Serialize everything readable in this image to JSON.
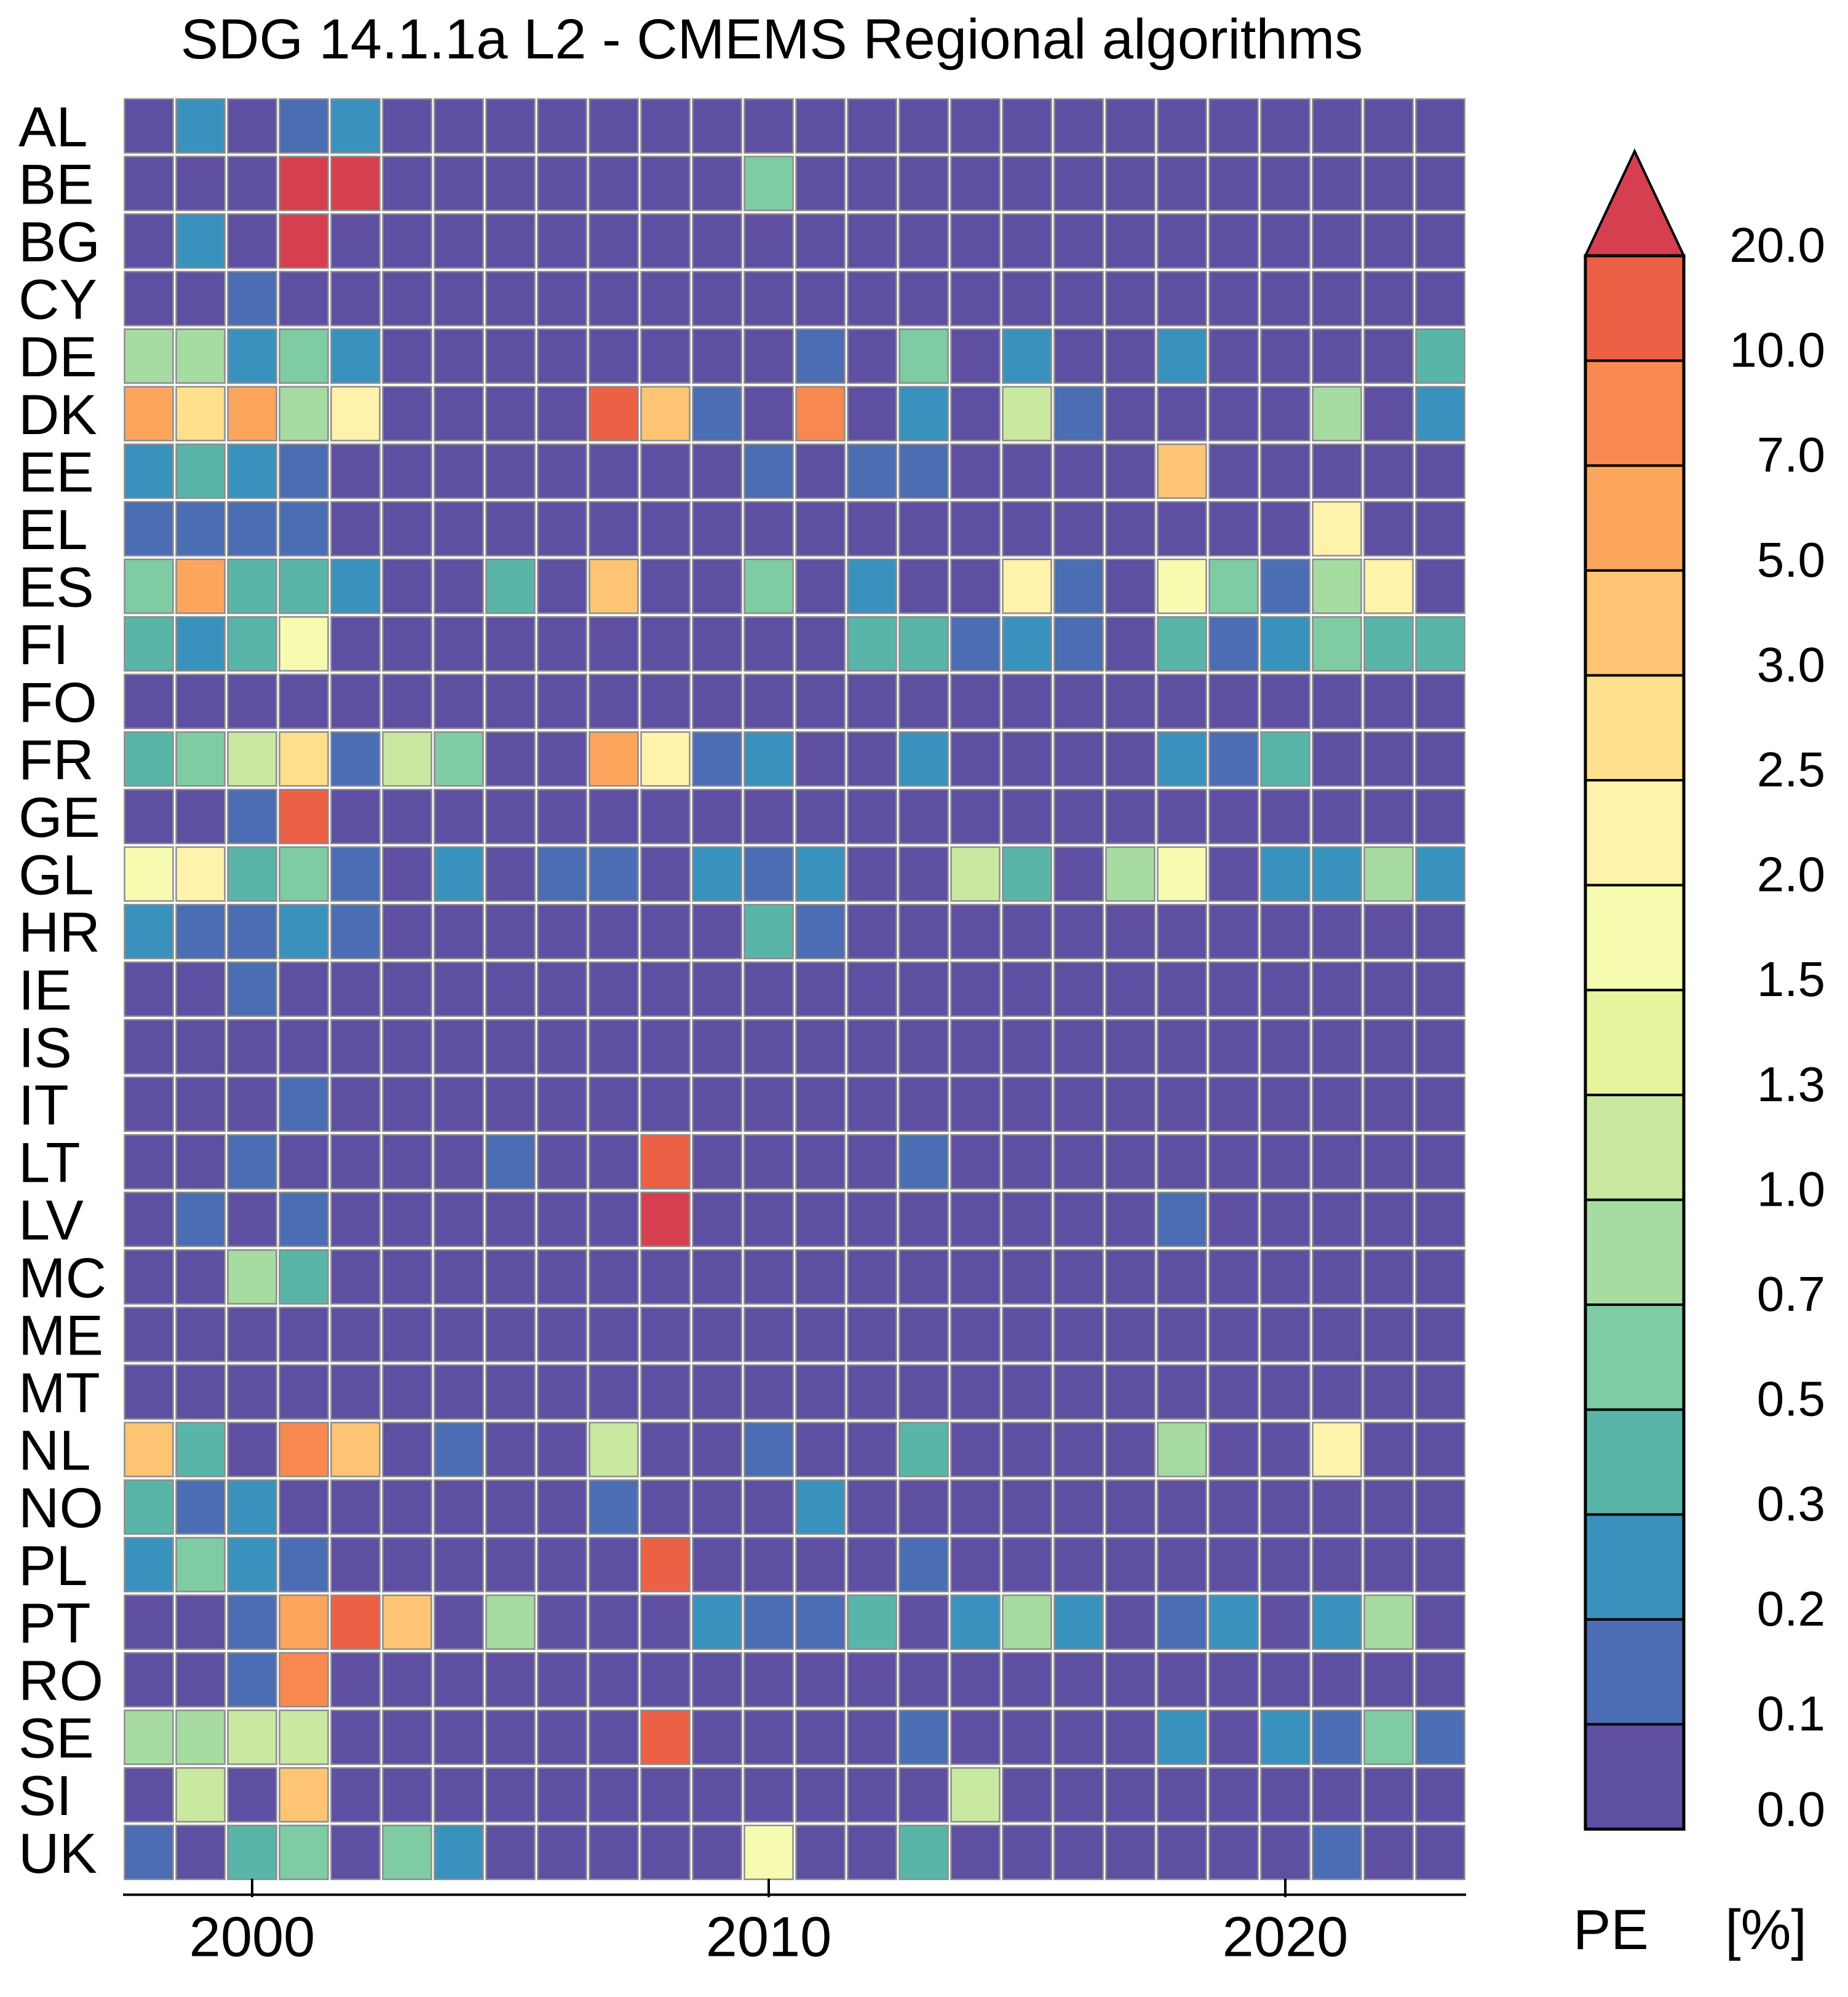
{
  "chart_data": {
    "type": "heatmap",
    "title": "SDG 14.1.1a L2 - CMEMS Regional algorithms",
    "xlabel": "",
    "ylabel": "",
    "x_ticks": [
      "2000",
      "2010",
      "2020"
    ],
    "x_tick_years": [
      2000,
      2010,
      2020
    ],
    "years": [
      1998,
      1999,
      2000,
      2001,
      2002,
      2003,
      2004,
      2005,
      2006,
      2007,
      2008,
      2009,
      2010,
      2011,
      2012,
      2013,
      2014,
      2015,
      2016,
      2017,
      2018,
      2019,
      2020,
      2021,
      2022,
      2023
    ],
    "countries": [
      "AL",
      "BE",
      "BG",
      "CY",
      "DE",
      "DK",
      "EE",
      "EL",
      "ES",
      "FI",
      "FO",
      "FR",
      "GE",
      "GL",
      "HR",
      "IE",
      "IS",
      "IT",
      "LT",
      "LV",
      "MC",
      "ME",
      "MT",
      "NL",
      "NO",
      "PL",
      "PT",
      "RO",
      "SE",
      "SI",
      "UK"
    ],
    "value_note": "Cell values are colour-class indices: 0 = 0.0-0.1, 1 = 0.1-0.2, 2 = 0.2-0.3, 3 = 0.3-0.5, 4 = 0.5-0.7, 5 = 0.7-1.0, 6 = 1.0-1.3, 7 = 1.3-1.5, 8 = 1.5-2.0, 9 = 2.0-2.5, 10 = 2.5-3.0, 11 = 3.0-5.0, 12 = 5.0-7.0, 13 = 7.0-10.0, 14 = 10.0-20.0, 15 = >20.0",
    "values": [
      [
        0,
        2,
        0,
        1,
        2,
        0,
        0,
        0,
        0,
        0,
        0,
        0,
        0,
        0,
        0,
        0,
        0,
        0,
        0,
        0,
        0,
        0,
        0,
        0,
        0,
        0
      ],
      [
        0,
        0,
        0,
        15,
        15,
        0,
        0,
        0,
        0,
        0,
        0,
        0,
        4,
        0,
        0,
        0,
        0,
        0,
        0,
        0,
        0,
        0,
        0,
        0,
        0,
        0
      ],
      [
        0,
        2,
        0,
        15,
        0,
        0,
        0,
        0,
        0,
        0,
        0,
        0,
        0,
        0,
        0,
        0,
        0,
        0,
        0,
        0,
        0,
        0,
        0,
        0,
        0,
        0
      ],
      [
        0,
        0,
        1,
        0,
        0,
        0,
        0,
        0,
        0,
        0,
        0,
        0,
        0,
        0,
        0,
        0,
        0,
        0,
        0,
        0,
        0,
        0,
        0,
        0,
        0,
        0
      ],
      [
        5,
        5,
        2,
        4,
        2,
        0,
        0,
        0,
        0,
        0,
        0,
        0,
        0,
        1,
        0,
        4,
        0,
        2,
        0,
        0,
        2,
        0,
        0,
        0,
        0,
        3
      ],
      [
        12,
        10,
        12,
        5,
        9,
        0,
        0,
        0,
        0,
        14,
        11,
        1,
        0,
        13,
        0,
        2,
        0,
        6,
        1,
        0,
        0,
        0,
        0,
        5,
        0,
        2
      ],
      [
        2,
        3,
        2,
        1,
        0,
        0,
        0,
        0,
        0,
        0,
        0,
        0,
        1,
        0,
        1,
        1,
        0,
        0,
        0,
        0,
        11,
        0,
        0,
        0,
        0,
        0
      ],
      [
        1,
        1,
        1,
        1,
        0,
        0,
        0,
        0,
        0,
        0,
        0,
        0,
        0,
        0,
        0,
        0,
        0,
        0,
        0,
        0,
        0,
        0,
        0,
        9,
        0,
        0
      ],
      [
        4,
        12,
        3,
        3,
        2,
        0,
        0,
        3,
        0,
        11,
        0,
        0,
        4,
        0,
        2,
        0,
        0,
        9,
        1,
        0,
        8,
        4,
        1,
        5,
        9,
        0
      ],
      [
        3,
        2,
        3,
        8,
        0,
        0,
        0,
        0,
        0,
        0,
        0,
        0,
        0,
        0,
        3,
        3,
        1,
        2,
        1,
        0,
        3,
        1,
        2,
        4,
        3,
        3
      ],
      [
        0,
        0,
        0,
        0,
        0,
        0,
        0,
        0,
        0,
        0,
        0,
        0,
        0,
        0,
        0,
        0,
        0,
        0,
        0,
        0,
        0,
        0,
        0,
        0,
        0,
        0
      ],
      [
        3,
        4,
        6,
        10,
        1,
        6,
        4,
        0,
        0,
        12,
        9,
        1,
        2,
        0,
        0,
        2,
        0,
        0,
        0,
        0,
        2,
        1,
        3,
        0,
        0,
        0
      ],
      [
        0,
        0,
        1,
        14,
        0,
        0,
        0,
        0,
        0,
        0,
        0,
        0,
        0,
        0,
        0,
        0,
        0,
        0,
        0,
        0,
        0,
        0,
        0,
        0,
        0,
        0
      ],
      [
        8,
        9,
        3,
        4,
        1,
        0,
        2,
        0,
        1,
        1,
        0,
        2,
        1,
        2,
        0,
        0,
        6,
        3,
        0,
        5,
        8,
        0,
        2,
        2,
        5,
        2
      ],
      [
        2,
        1,
        1,
        2,
        1,
        0,
        0,
        0,
        0,
        0,
        0,
        0,
        3,
        1,
        0,
        0,
        0,
        0,
        0,
        0,
        0,
        0,
        0,
        0,
        0,
        0
      ],
      [
        0,
        0,
        1,
        0,
        0,
        0,
        0,
        0,
        0,
        0,
        0,
        0,
        0,
        0,
        0,
        0,
        0,
        0,
        0,
        0,
        0,
        0,
        0,
        0,
        0,
        0
      ],
      [
        0,
        0,
        0,
        0,
        0,
        0,
        0,
        0,
        0,
        0,
        0,
        0,
        0,
        0,
        0,
        0,
        0,
        0,
        0,
        0,
        0,
        0,
        0,
        0,
        0,
        0
      ],
      [
        0,
        0,
        0,
        1,
        0,
        0,
        0,
        0,
        0,
        0,
        0,
        0,
        0,
        0,
        0,
        0,
        0,
        0,
        0,
        0,
        0,
        0,
        0,
        0,
        0,
        0
      ],
      [
        0,
        0,
        1,
        0,
        0,
        0,
        0,
        1,
        0,
        0,
        14,
        0,
        0,
        0,
        0,
        1,
        0,
        0,
        0,
        0,
        0,
        0,
        0,
        0,
        0,
        0
      ],
      [
        0,
        1,
        0,
        1,
        0,
        0,
        0,
        0,
        0,
        0,
        15,
        0,
        0,
        0,
        0,
        0,
        0,
        0,
        0,
        0,
        1,
        0,
        0,
        0,
        0,
        0
      ],
      [
        0,
        0,
        5,
        3,
        0,
        0,
        0,
        0,
        0,
        0,
        0,
        0,
        0,
        0,
        0,
        0,
        0,
        0,
        0,
        0,
        0,
        0,
        0,
        0,
        0,
        0
      ],
      [
        0,
        0,
        0,
        0,
        0,
        0,
        0,
        0,
        0,
        0,
        0,
        0,
        0,
        0,
        0,
        0,
        0,
        0,
        0,
        0,
        0,
        0,
        0,
        0,
        0,
        0
      ],
      [
        0,
        0,
        0,
        0,
        0,
        0,
        0,
        0,
        0,
        0,
        0,
        0,
        0,
        0,
        0,
        0,
        0,
        0,
        0,
        0,
        0,
        0,
        0,
        0,
        0,
        0
      ],
      [
        11,
        3,
        0,
        13,
        11,
        0,
        1,
        0,
        0,
        6,
        0,
        0,
        1,
        0,
        0,
        3,
        0,
        0,
        0,
        0,
        5,
        0,
        0,
        9,
        0,
        0
      ],
      [
        3,
        1,
        2,
        0,
        0,
        0,
        0,
        0,
        0,
        1,
        0,
        0,
        0,
        2,
        0,
        0,
        0,
        0,
        0,
        0,
        0,
        0,
        0,
        0,
        0,
        0
      ],
      [
        2,
        4,
        2,
        1,
        0,
        0,
        0,
        0,
        0,
        0,
        14,
        0,
        0,
        0,
        0,
        1,
        0,
        0,
        0,
        0,
        0,
        0,
        0,
        0,
        0,
        0
      ],
      [
        0,
        0,
        1,
        12,
        14,
        11,
        0,
        5,
        0,
        0,
        0,
        2,
        1,
        1,
        3,
        0,
        2,
        5,
        2,
        0,
        1,
        2,
        0,
        2,
        5,
        0
      ],
      [
        0,
        0,
        1,
        13,
        0,
        0,
        0,
        0,
        0,
        0,
        0,
        0,
        0,
        0,
        0,
        0,
        0,
        0,
        0,
        0,
        0,
        0,
        0,
        0,
        0,
        0
      ],
      [
        5,
        5,
        6,
        6,
        0,
        0,
        0,
        0,
        0,
        0,
        14,
        0,
        0,
        0,
        0,
        1,
        0,
        0,
        0,
        0,
        2,
        0,
        2,
        1,
        4,
        1
      ],
      [
        0,
        6,
        0,
        11,
        0,
        0,
        0,
        0,
        0,
        0,
        0,
        0,
        0,
        0,
        0,
        0,
        6,
        0,
        0,
        0,
        0,
        0,
        0,
        0,
        0,
        0
      ],
      [
        1,
        0,
        3,
        4,
        0,
        4,
        2,
        0,
        0,
        0,
        0,
        0,
        8,
        0,
        0,
        3,
        0,
        0,
        0,
        0,
        0,
        0,
        0,
        1,
        0,
        0
      ]
    ],
    "colorbar": {
      "label_left": "PE",
      "label_right": "[%]",
      "tick_labels": [
        "0.0",
        "0.1",
        "0.2",
        "0.3",
        "0.5",
        "0.7",
        "1.0",
        "1.3",
        "1.5",
        "2.0",
        "2.5",
        "3.0",
        "5.0",
        "7.0",
        "10.0",
        "20.0"
      ],
      "colors": [
        "#5e4fa2",
        "#4a6db3",
        "#3992bd",
        "#5ab5a9",
        "#7fcba3",
        "#a6dba2",
        "#c9e8a0",
        "#e7f49e",
        "#f7fbb0",
        "#fff2aa",
        "#fedf8b",
        "#fdc473",
        "#fca55d",
        "#f88950",
        "#ec6146",
        "#d63f4f"
      ]
    }
  }
}
